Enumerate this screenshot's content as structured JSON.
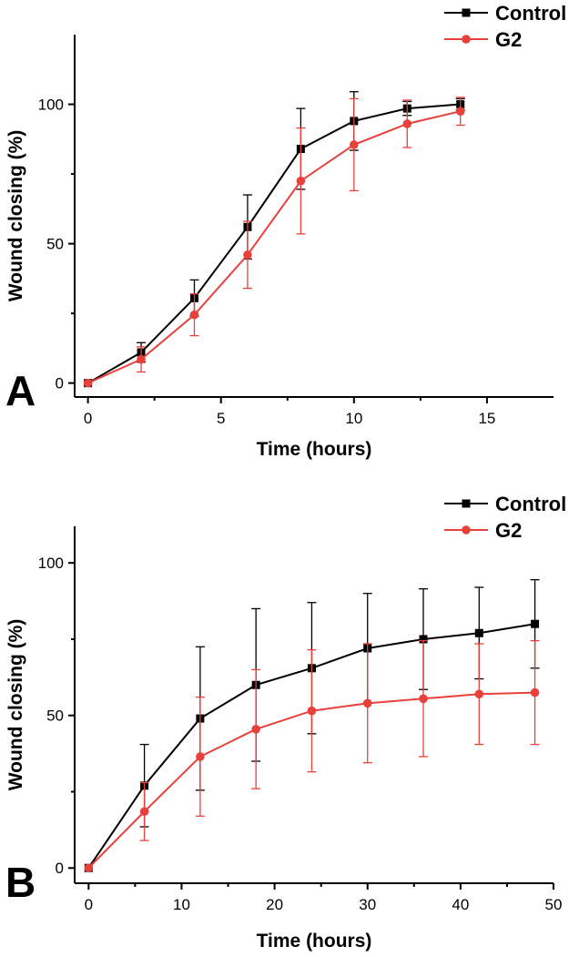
{
  "colors": {
    "control": "#000000",
    "g2": "#e8413c"
  },
  "chart_data": [
    {
      "type": "line",
      "panel_label": "A",
      "xlabel": "Time (hours)",
      "ylabel": "Wound closing (%)",
      "xlim": [
        -0.5,
        17.5
      ],
      "ylim": [
        -5,
        125
      ],
      "xticks": [
        0,
        5,
        10,
        15
      ],
      "yticks": [
        0,
        50,
        100
      ],
      "grid": false,
      "legend_position": "top-right",
      "x": [
        0,
        2,
        4,
        6,
        8,
        10,
        12,
        14
      ],
      "series": [
        {
          "name": "Control",
          "marker": "square",
          "values": [
            0,
            11,
            30.5,
            56,
            84,
            94,
            98.5,
            100
          ],
          "error": [
            0,
            3.5,
            6.5,
            11.5,
            14.5,
            10.5,
            2.5,
            2
          ]
        },
        {
          "name": "G2",
          "marker": "circle",
          "values": [
            0,
            8.5,
            24.5,
            46,
            72.5,
            85.5,
            93,
            97.5
          ],
          "error": [
            0,
            4.5,
            7.5,
            12,
            19,
            16.5,
            8.5,
            5
          ]
        }
      ]
    },
    {
      "type": "line",
      "panel_label": "B",
      "xlabel": "Time (hours)",
      "ylabel": "Wound closing (%)",
      "xlim": [
        -1.5,
        50
      ],
      "ylim": [
        -5,
        112
      ],
      "xticks": [
        0,
        10,
        20,
        30,
        40,
        50
      ],
      "yticks": [
        0,
        50,
        100
      ],
      "grid": false,
      "legend_position": "top-right",
      "x": [
        0,
        6,
        12,
        18,
        24,
        30,
        36,
        42,
        48
      ],
      "series": [
        {
          "name": "Control",
          "marker": "square",
          "values": [
            0,
            27,
            49,
            60,
            65.5,
            72,
            75,
            77,
            80
          ],
          "error": [
            0,
            13.5,
            23.5,
            25,
            21.5,
            18,
            16.5,
            15,
            14.5
          ]
        },
        {
          "name": "G2",
          "marker": "circle",
          "values": [
            0,
            18.5,
            36.5,
            45.5,
            51.5,
            54,
            55.5,
            57,
            57.5
          ],
          "error": [
            0,
            9.5,
            19.5,
            19.5,
            20,
            19.5,
            19,
            16.5,
            17
          ]
        }
      ]
    }
  ]
}
